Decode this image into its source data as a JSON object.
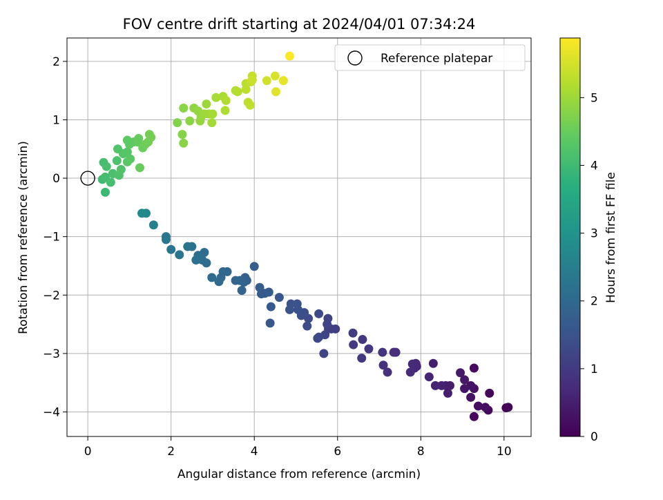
{
  "chart_data": {
    "type": "scatter",
    "title": "FOV centre drift starting at 2024/04/01 07:34:24",
    "xlabel": "Angular distance from reference (arcmin)",
    "ylabel": "Rotation from reference (arcmin)",
    "xlim": [
      -0.5,
      10.65
    ],
    "ylim": [
      -4.42,
      2.4
    ],
    "xticks": [
      0,
      2,
      4,
      6,
      8,
      10
    ],
    "yticks": [
      -4,
      -3,
      -2,
      -1,
      0,
      1,
      2
    ],
    "grid": true,
    "legend": {
      "position": "top-right",
      "entries": [
        "Reference platepar"
      ]
    },
    "reference_point": {
      "x": 0,
      "y": 0
    },
    "colorbar": {
      "label": "Hours from first FF file",
      "colormap": "viridis",
      "range": [
        0,
        5.88
      ],
      "ticks": [
        0,
        1,
        2,
        3,
        4,
        5
      ]
    },
    "points": [
      [
        10.1,
        -3.92,
        0.05
      ],
      [
        10.05,
        -3.93,
        0.08
      ],
      [
        9.65,
        -3.68,
        0.12
      ],
      [
        9.62,
        -3.97,
        0.15
      ],
      [
        9.55,
        -3.92,
        0.2
      ],
      [
        9.38,
        -3.9,
        0.22
      ],
      [
        9.28,
        -3.6,
        0.25
      ],
      [
        9.28,
        -3.25,
        0.18
      ],
      [
        9.28,
        -4.08,
        0.1
      ],
      [
        9.2,
        -3.55,
        0.3
      ],
      [
        9.2,
        -3.75,
        0.28
      ],
      [
        9.05,
        -3.6,
        0.35
      ],
      [
        9.05,
        -3.45,
        0.38
      ],
      [
        8.95,
        -3.33,
        0.4
      ],
      [
        8.7,
        -3.55,
        0.45
      ],
      [
        8.65,
        -3.68,
        0.5
      ],
      [
        8.6,
        -3.55,
        0.48
      ],
      [
        8.5,
        -3.55,
        0.55
      ],
      [
        8.35,
        -3.55,
        0.58
      ],
      [
        8.3,
        -3.17,
        0.52
      ],
      [
        8.2,
        -3.4,
        0.6
      ],
      [
        7.9,
        -3.22,
        0.62
      ],
      [
        7.88,
        -3.17,
        0.65
      ],
      [
        7.85,
        -3.25,
        0.68
      ],
      [
        7.8,
        -3.18,
        0.7
      ],
      [
        7.75,
        -3.32,
        0.72
      ],
      [
        7.4,
        -2.98,
        0.78
      ],
      [
        7.35,
        -2.98,
        0.8
      ],
      [
        7.2,
        -3.32,
        0.82
      ],
      [
        7.1,
        -3.2,
        0.85
      ],
      [
        7.08,
        -2.98,
        0.88
      ],
      [
        6.75,
        -2.92,
        0.92
      ],
      [
        6.6,
        -2.76,
        0.95
      ],
      [
        6.58,
        -3.08,
        0.98
      ],
      [
        6.38,
        -2.85,
        1.0
      ],
      [
        6.37,
        -2.65,
        1.03
      ],
      [
        5.95,
        -2.58,
        1.08
      ],
      [
        5.85,
        -2.58,
        1.1
      ],
      [
        5.78,
        -2.58,
        1.12
      ],
      [
        5.77,
        -2.4,
        1.15
      ],
      [
        5.75,
        -2.5,
        1.18
      ],
      [
        5.7,
        -2.68,
        1.2
      ],
      [
        5.67,
        -3.0,
        1.22
      ],
      [
        5.55,
        -2.72,
        1.25
      ],
      [
        5.52,
        -2.74,
        1.28
      ],
      [
        5.55,
        -2.32,
        1.3
      ],
      [
        5.3,
        -2.4,
        1.35
      ],
      [
        5.27,
        -2.53,
        1.38
      ],
      [
        5.2,
        -2.3,
        1.4
      ],
      [
        5.13,
        -2.35,
        1.42
      ],
      [
        5.05,
        -2.25,
        1.45
      ],
      [
        5.03,
        -2.15,
        1.48
      ],
      [
        4.88,
        -2.15,
        1.5
      ],
      [
        4.85,
        -2.25,
        1.52
      ],
      [
        4.6,
        -2.04,
        1.58
      ],
      [
        4.4,
        -2.2,
        1.62
      ],
      [
        4.38,
        -2.48,
        1.6
      ],
      [
        4.35,
        -1.95,
        1.65
      ],
      [
        4.25,
        -1.97,
        1.68
      ],
      [
        4.17,
        -1.98,
        1.7
      ],
      [
        4.13,
        -1.87,
        1.72
      ],
      [
        4.0,
        -1.51,
        1.75
      ],
      [
        3.82,
        -1.75,
        1.8
      ],
      [
        3.78,
        -1.7,
        1.82
      ],
      [
        3.75,
        -1.78,
        1.85
      ],
      [
        3.7,
        -1.92,
        1.88
      ],
      [
        3.65,
        -1.75,
        1.9
      ],
      [
        3.55,
        -1.75,
        1.92
      ],
      [
        3.35,
        -1.6,
        1.95
      ],
      [
        3.25,
        -1.6,
        1.98
      ],
      [
        3.2,
        -1.7,
        2.0
      ],
      [
        3.15,
        -1.77,
        2.02
      ],
      [
        2.98,
        -1.7,
        2.05
      ],
      [
        2.85,
        -1.45,
        2.08
      ],
      [
        2.8,
        -1.27,
        2.1
      ],
      [
        2.75,
        -1.4,
        2.12
      ],
      [
        2.65,
        -1.32,
        2.15
      ],
      [
        2.6,
        -1.4,
        2.18
      ],
      [
        2.5,
        -1.17,
        2.2
      ],
      [
        2.4,
        -1.17,
        2.22
      ],
      [
        2.2,
        -1.31,
        2.25
      ],
      [
        2.0,
        -1.22,
        2.28
      ],
      [
        1.88,
        -1.05,
        2.3
      ],
      [
        1.88,
        -1.0,
        2.32
      ],
      [
        1.58,
        -0.8,
        2.55
      ],
      [
        1.4,
        -0.6,
        2.75
      ],
      [
        1.3,
        -0.6,
        2.8
      ],
      [
        0.42,
        -0.24,
        3.95
      ],
      [
        0.35,
        -0.02,
        4.0
      ],
      [
        0.42,
        0.02,
        4.05
      ],
      [
        0.55,
        -0.07,
        4.08
      ],
      [
        0.38,
        0.27,
        4.1
      ],
      [
        0.45,
        0.2,
        4.12
      ],
      [
        0.6,
        0.08,
        4.15
      ],
      [
        0.7,
        0.3,
        4.18
      ],
      [
        0.75,
        0.05,
        4.2
      ],
      [
        0.8,
        0.15,
        4.22
      ],
      [
        0.72,
        0.5,
        4.25
      ],
      [
        0.85,
        0.42,
        4.28
      ],
      [
        0.95,
        0.45,
        4.3
      ],
      [
        0.95,
        0.28,
        4.32
      ],
      [
        1.02,
        0.33,
        4.35
      ],
      [
        0.95,
        0.65,
        4.38
      ],
      [
        1.0,
        0.58,
        4.4
      ],
      [
        1.1,
        0.62,
        4.42
      ],
      [
        1.2,
        0.62,
        4.45
      ],
      [
        1.22,
        0.68,
        4.48
      ],
      [
        1.25,
        0.18,
        4.5
      ],
      [
        1.32,
        0.52,
        4.52
      ],
      [
        1.38,
        0.58,
        4.55
      ],
      [
        1.45,
        0.62,
        4.58
      ],
      [
        1.48,
        0.75,
        4.6
      ],
      [
        1.52,
        0.7,
        4.62
      ],
      [
        2.15,
        0.95,
        4.75
      ],
      [
        2.27,
        0.75,
        4.78
      ],
      [
        2.3,
        0.6,
        4.8
      ],
      [
        2.3,
        1.2,
        4.82
      ],
      [
        2.45,
        0.98,
        4.85
      ],
      [
        2.55,
        1.2,
        4.88
      ],
      [
        2.65,
        1.15,
        4.9
      ],
      [
        2.7,
        0.98,
        4.92
      ],
      [
        2.72,
        1.05,
        4.95
      ],
      [
        2.8,
        1.1,
        4.98
      ],
      [
        2.85,
        1.27,
        5.0
      ],
      [
        2.9,
        1.1,
        5.02
      ],
      [
        2.98,
        0.95,
        5.05
      ],
      [
        3.0,
        1.1,
        5.08
      ],
      [
        3.08,
        1.38,
        5.1
      ],
      [
        3.25,
        1.4,
        5.12
      ],
      [
        3.3,
        1.16,
        5.15
      ],
      [
        3.32,
        1.33,
        5.18
      ],
      [
        3.55,
        1.5,
        5.2
      ],
      [
        3.6,
        1.48,
        5.22
      ],
      [
        3.8,
        1.62,
        5.25
      ],
      [
        3.8,
        1.52,
        5.28
      ],
      [
        3.85,
        1.3,
        5.3
      ],
      [
        3.9,
        1.25,
        5.32
      ],
      [
        3.92,
        1.65,
        5.35
      ],
      [
        3.95,
        1.75,
        5.38
      ],
      [
        3.95,
        1.68,
        5.4
      ],
      [
        4.3,
        1.67,
        5.48
      ],
      [
        4.5,
        1.75,
        5.55
      ],
      [
        4.52,
        1.48,
        5.6
      ],
      [
        4.7,
        1.67,
        5.65
      ],
      [
        4.85,
        2.09,
        5.85
      ]
    ]
  }
}
